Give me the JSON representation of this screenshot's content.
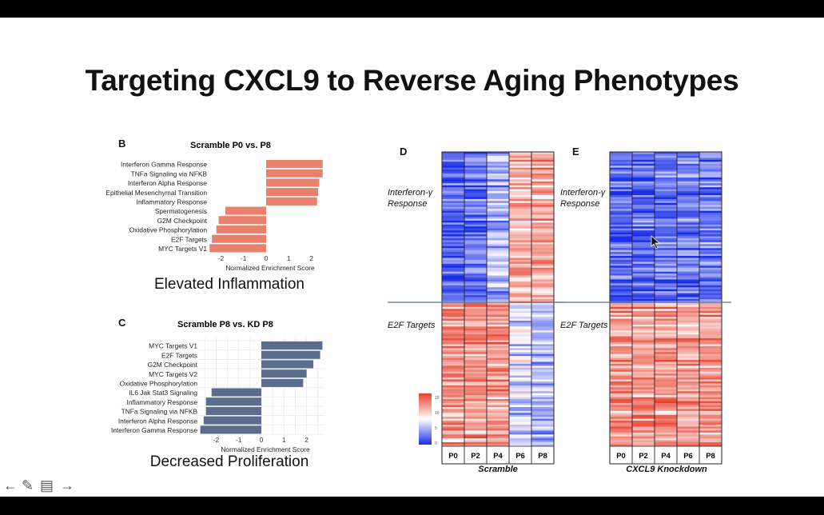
{
  "slide": {
    "title": "Targeting CXCL9 to Reverse Aging Phenotypes"
  },
  "panel_b": {
    "letter": "B",
    "caption": "Elevated Inflammation"
  },
  "panel_c": {
    "letter": "C",
    "caption": "Decreased Proliferation"
  },
  "chart_data": [
    {
      "type": "bar",
      "orientation": "horizontal",
      "title": "Scramble P0 vs. P8",
      "xlabel": "Normalized Enrichment Score",
      "ylabel": "",
      "xlim": [
        -2.6,
        2.6
      ],
      "xticks": [
        "-2",
        "-1",
        "0",
        "1",
        "2"
      ],
      "color": "#e8806c",
      "categories": [
        "Interferon Gamma Response",
        "TNFa Signaling via NFKB",
        "Interferon Alpha Response",
        "Epithelial Mesenchymal Transition",
        "Inflammatory Response",
        "Spermatogenesis",
        "G2M Checkpoint",
        "Oxidative Phosphorylation",
        "E2F Targets",
        "MYC Targets V1"
      ],
      "values": [
        2.5,
        2.5,
        2.35,
        2.3,
        2.25,
        -1.8,
        -2.1,
        -2.2,
        -2.4,
        -2.5
      ]
    },
    {
      "type": "bar",
      "orientation": "horizontal",
      "title": "Scramble P8 vs. KD P8",
      "xlabel": "Normalized Enrichment Score",
      "ylabel": "",
      "xlim": [
        -2.8,
        2.8
      ],
      "xticks": [
        "-2",
        "-1",
        "0",
        "1",
        "2"
      ],
      "grid": true,
      "color": "#5a6d8c",
      "categories": [
        "MYC Targets V1",
        "E2F Targets",
        "G2M Checkpoint",
        "MYC Targets V2",
        "Oxidative Phosphorylation",
        "IL6 Jak Stat3 Signaling",
        "Inflammatory Response",
        "TNFa Signaling via NFKB",
        "Interferon Alpha Response",
        "Interferon Gamma Response"
      ],
      "values": [
        2.7,
        2.6,
        2.3,
        2.0,
        1.85,
        -2.2,
        -2.45,
        -2.45,
        -2.55,
        -2.7
      ]
    },
    {
      "type": "heatmap",
      "panel": "D",
      "title": "Scramble",
      "columns": [
        "P0",
        "P2",
        "P4",
        "P6",
        "P8"
      ],
      "row_groups": [
        "Interferon-γ Response",
        "E2F Targets"
      ],
      "colorscale": {
        "low": "#1a2ee8",
        "mid": "#ffffff",
        "high": "#e8402e",
        "ticks": [
          "15",
          "10",
          "5",
          "0"
        ]
      }
    },
    {
      "type": "heatmap",
      "panel": "E",
      "title": "CXCL9 Knockdown",
      "columns": [
        "P0",
        "P2",
        "P4",
        "P6",
        "P8"
      ],
      "row_groups": [
        "Interferon-γ Response",
        "E2F Targets"
      ]
    }
  ],
  "heatmap_d": {
    "letter": "D",
    "row_label_1a": "Interferon-γ",
    "row_label_1b": "Response",
    "row_label_2": "E2F Targets"
  },
  "heatmap_e": {
    "letter": "E",
    "row_label_1a": "Interferon-γ",
    "row_label_1b": "Response",
    "row_label_2": "E2F Targets"
  },
  "nav": {
    "prev": "←",
    "pen": "✎",
    "menu": "▤",
    "next": "→"
  }
}
